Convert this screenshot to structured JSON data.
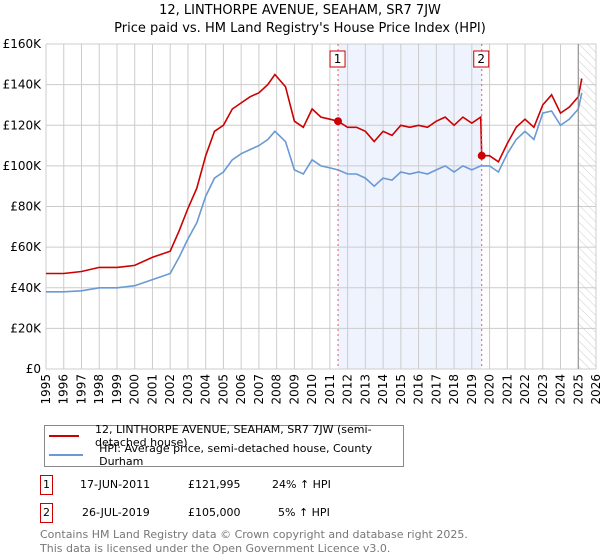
{
  "title_line1": "12, LINTHORPE AVENUE, SEAHAM, SR7 7JW",
  "title_line2": "Price paid vs. HM Land Registry's House Price Index (HPI)",
  "colors": {
    "property": "#cc0000",
    "hpi": "#6a99d5",
    "shade": "#eef3fd",
    "grid": "#cccccc"
  },
  "chart_data": {
    "type": "line",
    "xlim": [
      1995,
      2026
    ],
    "ylim": [
      0,
      160000
    ],
    "y_ticks": [
      {
        "v": 0,
        "label": "£0"
      },
      {
        "v": 20000,
        "label": "£20K"
      },
      {
        "v": 40000,
        "label": "£40K"
      },
      {
        "v": 60000,
        "label": "£60K"
      },
      {
        "v": 80000,
        "label": "£80K"
      },
      {
        "v": 100000,
        "label": "£100K"
      },
      {
        "v": 120000,
        "label": "£120K"
      },
      {
        "v": 140000,
        "label": "£140K"
      },
      {
        "v": 160000,
        "label": "£160K"
      }
    ],
    "x_ticks": [
      "1995",
      "1996",
      "1997",
      "1998",
      "1999",
      "2000",
      "2001",
      "2002",
      "2003",
      "2004",
      "2005",
      "2006",
      "2007",
      "2008",
      "2009",
      "2010",
      "2011",
      "2012",
      "2013",
      "2014",
      "2015",
      "2016",
      "2017",
      "2018",
      "2019",
      "2020",
      "2021",
      "2022",
      "2023",
      "2024",
      "2025",
      "2026"
    ],
    "shaded_range": [
      2011.46,
      2019.56
    ],
    "forecast_start": 2025.0,
    "series": [
      {
        "name": "12, LINTHORPE AVENUE, SEAHAM, SR7 7JW (semi-detached house)",
        "x": [
          1995,
          1996,
          1997,
          1998,
          1999,
          2000,
          2001,
          2002,
          2002.5,
          2003,
          2003.5,
          2004,
          2004.5,
          2005,
          2005.5,
          2006,
          2006.5,
          2007,
          2007.5,
          2007.9,
          2008.5,
          2009,
          2009.5,
          2010,
          2010.5,
          2011,
          2011.46,
          2012,
          2012.5,
          2013,
          2013.5,
          2014,
          2014.5,
          2015,
          2015.5,
          2016,
          2016.5,
          2017,
          2017.5,
          2018,
          2018.5,
          2019,
          2019.5,
          2019.56,
          2020,
          2020.5,
          2021,
          2021.5,
          2022,
          2022.5,
          2023,
          2023.5,
          2024,
          2024.5,
          2025,
          2025.2
        ],
        "y": [
          47000,
          47000,
          48000,
          50000,
          50000,
          51000,
          55000,
          58000,
          68000,
          79000,
          89000,
          105000,
          117000,
          120000,
          128000,
          131000,
          134000,
          136000,
          140000,
          145000,
          139000,
          122000,
          119000,
          128000,
          124000,
          123000,
          121995,
          119000,
          119000,
          117000,
          112000,
          117000,
          115000,
          120000,
          119000,
          120000,
          119000,
          122000,
          124000,
          120000,
          124000,
          121000,
          124000,
          105000,
          105000,
          102000,
          111000,
          119000,
          123000,
          119000,
          130000,
          135000,
          126000,
          129000,
          134000,
          143000
        ]
      },
      {
        "name": "HPI: Average price, semi-detached house, County Durham",
        "x": [
          1995,
          1996,
          1997,
          1998,
          1999,
          2000,
          2001,
          2002,
          2002.5,
          2003,
          2003.5,
          2004,
          2004.5,
          2005,
          2005.5,
          2006,
          2006.5,
          2007,
          2007.5,
          2007.9,
          2008.5,
          2009,
          2009.5,
          2010,
          2010.5,
          2011,
          2011.46,
          2012,
          2012.5,
          2013,
          2013.5,
          2014,
          2014.5,
          2015,
          2015.5,
          2016,
          2016.5,
          2017,
          2017.5,
          2018,
          2018.5,
          2019,
          2019.5,
          2020,
          2020.5,
          2021,
          2021.5,
          2022,
          2022.5,
          2023,
          2023.5,
          2024,
          2024.5,
          2025,
          2025.2
        ],
        "y": [
          38000,
          38000,
          38500,
          40000,
          40000,
          41000,
          44000,
          47000,
          55000,
          64000,
          72000,
          85000,
          94000,
          97000,
          103000,
          106000,
          108000,
          110000,
          113000,
          117000,
          112000,
          98000,
          96000,
          103000,
          100000,
          99000,
          98000,
          96000,
          96000,
          94000,
          90000,
          94000,
          93000,
          97000,
          96000,
          97000,
          96000,
          98000,
          100000,
          97000,
          100000,
          98000,
          100000,
          100000,
          97000,
          106000,
          113000,
          117000,
          113000,
          126000,
          127000,
          120000,
          123000,
          128000,
          136000
        ]
      }
    ],
    "sales": [
      {
        "label": "1",
        "x": 2011.46,
        "y": 121995
      },
      {
        "label": "2",
        "x": 2019.56,
        "y": 105000
      }
    ]
  },
  "legend": [
    "12, LINTHORPE AVENUE, SEAHAM, SR7 7JW (semi-detached house)",
    "HPI: Average price, semi-detached house, County Durham"
  ],
  "transactions": [
    {
      "num": "1",
      "date": "17-JUN-2011",
      "price": "£121,995",
      "hpi": "24% ↑ HPI"
    },
    {
      "num": "2",
      "date": "26-JUL-2019",
      "price": "£105,000",
      "hpi": "5% ↑ HPI"
    }
  ],
  "footer_line1": "Contains HM Land Registry data © Crown copyright and database right 2025.",
  "footer_line2": "This data is licensed under the Open Government Licence v3.0."
}
